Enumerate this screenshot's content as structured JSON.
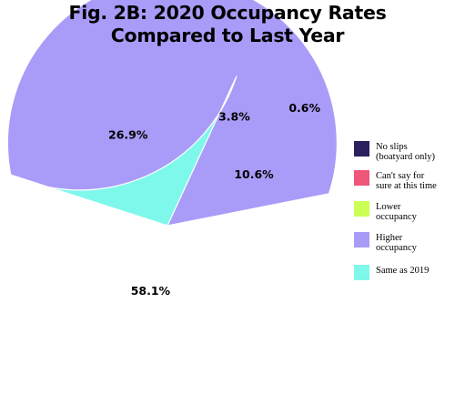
{
  "chart_data": {
    "type": "pie",
    "title_lines": [
      "Fig. 2B: 2020 Occupancy Rates",
      "Compared to Last Year"
    ],
    "slices": [
      {
        "label": "No slips (boatyard only)",
        "value": 3.8,
        "display": "3.8%",
        "color": "#2b1f5e"
      },
      {
        "label": "Can't say for sure at this time",
        "value": 0.6,
        "display": "0.6%",
        "color": "#f0557a"
      },
      {
        "label": "Lower occupancy",
        "value": 10.6,
        "display": "10.6%",
        "color": "#ccff55"
      },
      {
        "label": "Higher occupancy",
        "value": 58.1,
        "display": "58.1%",
        "color": "#a99cf8"
      },
      {
        "label": "Same as 2019",
        "value": 26.9,
        "display": "26.9%",
        "color": "#7ff8ec"
      }
    ],
    "legend": [
      {
        "label_lines": [
          "No slips",
          "(boatyard only)"
        ],
        "color": "#2b1f5e"
      },
      {
        "label_lines": [
          "Can't say for",
          "sure at this time"
        ],
        "color": "#f0557a"
      },
      {
        "label_lines": [
          "Lower",
          "occupancy"
        ],
        "color": "#ccff55"
      },
      {
        "label_lines": [
          "Higher",
          "occupancy"
        ],
        "color": "#a99cf8"
      },
      {
        "label_lines": [
          "Same as 2019"
        ],
        "color": "#7ff8ec"
      }
    ],
    "legend_position": "right"
  }
}
